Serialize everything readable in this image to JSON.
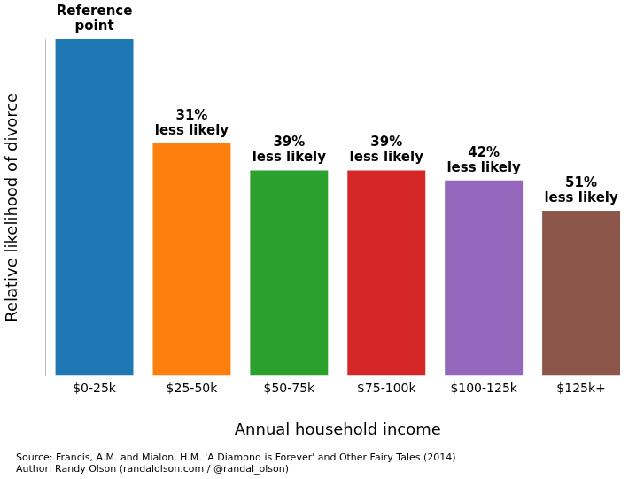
{
  "chart_data": {
    "type": "bar",
    "x_label": "Annual household income",
    "y_label": "Relative likelihood of divorce",
    "categories": [
      "$0-25k",
      "$25-50k",
      "$50-75k",
      "$75-100k",
      "$100-125k",
      "$125k+"
    ],
    "values": [
      100,
      69,
      61,
      61,
      58,
      49
    ],
    "value_labels": [
      [
        "Reference",
        "point"
      ],
      [
        "31%",
        "less likely"
      ],
      [
        "39%",
        "less likely"
      ],
      [
        "39%",
        "less likely"
      ],
      [
        "42%",
        "less likely"
      ],
      [
        "51%",
        "less likely"
      ]
    ],
    "colors": [
      "#1f77b4",
      "#ff7f0e",
      "#2ca02c",
      "#d62728",
      "#9467bd",
      "#8c564b"
    ],
    "ylim": [
      0,
      100
    ],
    "yticks": [],
    "grid": false,
    "tick_labels": "x",
    "notes": [
      "Source: Francis, A.M. and Mialon, H.M. 'A Diamond is Forever' and Other Fairy Tales (2014)",
      "Author: Randy Olson (randalolson.com / @randal_olson)"
    ]
  }
}
